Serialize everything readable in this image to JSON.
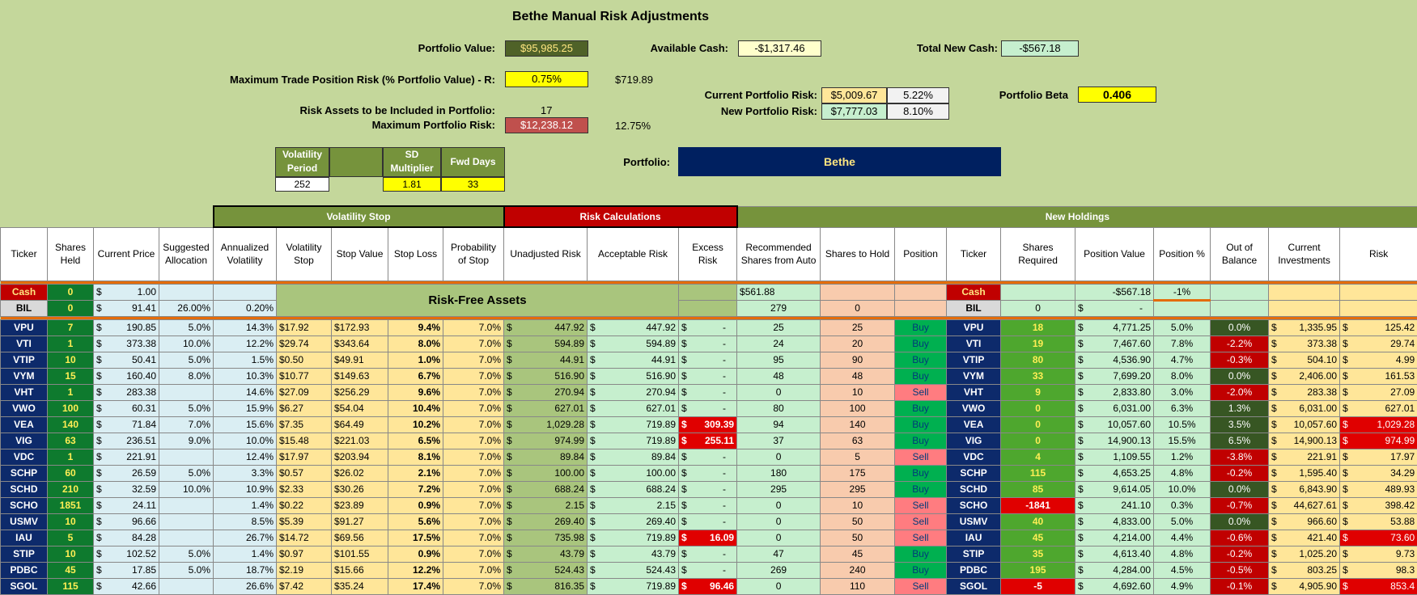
{
  "title": "Bethe Manual Risk Adjustments",
  "top": {
    "portfolio_value_label": "Portfolio Value:",
    "portfolio_value": "$95,985.25",
    "available_cash_label": "Available Cash:",
    "available_cash": "-$1,317.46",
    "total_new_cash_label": "Total New Cash:",
    "total_new_cash": "-$567.18",
    "max_trade_label": "Maximum Trade Position Risk (% Portfolio Value) - R:",
    "max_trade_pct": "0.75%",
    "max_trade_amt": "$719.89",
    "current_risk_label": "Current Portfolio Risk:",
    "current_risk": "$5,009.67",
    "current_risk_pct": "5.22%",
    "new_risk_label": "New Portfolio Risk:",
    "new_risk": "$7,777.03",
    "new_risk_pct": "8.10%",
    "beta_label": "Portfolio Beta",
    "beta": "0.406",
    "risk_assets_label": "Risk Assets to be Included in Portfolio:",
    "risk_assets": "17",
    "max_port_risk_label": "Maximum Portfolio Risk:",
    "max_port_risk": "$12,238.12",
    "max_port_risk_pct": "12.75%",
    "portfolio_label": "Portfolio:",
    "portfolio_name": "Bethe"
  },
  "params": {
    "vol_period_label": "Volatility Period",
    "sd_label": "SD Multiplier",
    "fwd_label": "Fwd Days",
    "vol_period": "252",
    "sd": "1.81",
    "fwd": "33"
  },
  "sections": {
    "vol": "Volatility Stop",
    "risk": "Risk Calculations",
    "new": "New Holdings",
    "riskfree": "Risk-Free Assets"
  },
  "headers": [
    "Ticker",
    "Shares Held",
    "Current Price",
    "Suggested Allocation",
    "Annualized Volatility",
    "Volatility Stop",
    "Stop Value",
    "Stop Loss",
    "Probability of Stop",
    "Unadjusted Risk",
    "Acceptable Risk",
    "Excess Risk",
    "Recommended Shares from Auto",
    "Shares to Hold",
    "Position",
    "Ticker",
    "Shares Required",
    "Position Value",
    "Position %",
    "Out of Balance",
    "Current Investments",
    "Risk"
  ],
  "cash": {
    "t": "Cash",
    "sh": "0",
    "p": "1.00",
    "rec": "$561.88",
    "t2": "Cash",
    "pv": "-$567.18",
    "pp": "-1%"
  },
  "bil": {
    "t": "BIL",
    "sh": "0",
    "p": "91.41",
    "alloc": "26.00%",
    "vol": "0.20%",
    "rec": "279",
    "hold": "0",
    "t2": "BIL",
    "req": "0",
    "pv": "-"
  },
  "rows": [
    [
      "VPU",
      "7",
      "190.85",
      "5.0%",
      "14.3%",
      "$17.92",
      "$172.93",
      "9.4%",
      "7.0%",
      "447.92",
      "447.92",
      "-",
      "25",
      "25",
      "Buy",
      "VPU",
      "18",
      "4,771.25",
      "5.0%",
      "0.0%",
      "1,335.95",
      "125.42"
    ],
    [
      "VTI",
      "1",
      "373.38",
      "10.0%",
      "12.2%",
      "$29.74",
      "$343.64",
      "8.0%",
      "7.0%",
      "594.89",
      "594.89",
      "-",
      "24",
      "20",
      "Buy",
      "VTI",
      "19",
      "7,467.60",
      "7.8%",
      "-2.2%",
      "373.38",
      "29.74"
    ],
    [
      "VTIP",
      "10",
      "50.41",
      "5.0%",
      "1.5%",
      "$0.50",
      "$49.91",
      "1.0%",
      "7.0%",
      "44.91",
      "44.91",
      "-",
      "95",
      "90",
      "Buy",
      "VTIP",
      "80",
      "4,536.90",
      "4.7%",
      "-0.3%",
      "504.10",
      "4.99"
    ],
    [
      "VYM",
      "15",
      "160.40",
      "8.0%",
      "10.3%",
      "$10.77",
      "$149.63",
      "6.7%",
      "7.0%",
      "516.90",
      "516.90",
      "-",
      "48",
      "48",
      "Buy",
      "VYM",
      "33",
      "7,699.20",
      "8.0%",
      "0.0%",
      "2,406.00",
      "161.53"
    ],
    [
      "VHT",
      "1",
      "283.38",
      "",
      "14.6%",
      "$27.09",
      "$256.29",
      "9.6%",
      "7.0%",
      "270.94",
      "270.94",
      "-",
      "0",
      "10",
      "Sell",
      "VHT",
      "9",
      "2,833.80",
      "3.0%",
      "-2.0%",
      "283.38",
      "27.09"
    ],
    [
      "VWO",
      "100",
      "60.31",
      "5.0%",
      "15.9%",
      "$6.27",
      "$54.04",
      "10.4%",
      "7.0%",
      "627.01",
      "627.01",
      "-",
      "80",
      "100",
      "Buy",
      "VWO",
      "0",
      "6,031.00",
      "6.3%",
      "1.3%",
      "6,031.00",
      "627.01"
    ],
    [
      "VEA",
      "140",
      "71.84",
      "7.0%",
      "15.6%",
      "$7.35",
      "$64.49",
      "10.2%",
      "7.0%",
      "1,029.28",
      "719.89",
      "309.39",
      "94",
      "140",
      "Buy",
      "VEA",
      "0",
      "10,057.60",
      "10.5%",
      "3.5%",
      "10,057.60",
      "1,029.28"
    ],
    [
      "VIG",
      "63",
      "236.51",
      "9.0%",
      "10.0%",
      "$15.48",
      "$221.03",
      "6.5%",
      "7.0%",
      "974.99",
      "719.89",
      "255.11",
      "37",
      "63",
      "Buy",
      "VIG",
      "0",
      "14,900.13",
      "15.5%",
      "6.5%",
      "14,900.13",
      "974.99"
    ],
    [
      "VDC",
      "1",
      "221.91",
      "",
      "12.4%",
      "$17.97",
      "$203.94",
      "8.1%",
      "7.0%",
      "89.84",
      "89.84",
      "-",
      "0",
      "5",
      "Sell",
      "VDC",
      "4",
      "1,109.55",
      "1.2%",
      "-3.8%",
      "221.91",
      "17.97"
    ],
    [
      "SCHP",
      "60",
      "26.59",
      "5.0%",
      "3.3%",
      "$0.57",
      "$26.02",
      "2.1%",
      "7.0%",
      "100.00",
      "100.00",
      "-",
      "180",
      "175",
      "Buy",
      "SCHP",
      "115",
      "4,653.25",
      "4.8%",
      "-0.2%",
      "1,595.40",
      "34.29"
    ],
    [
      "SCHD",
      "210",
      "32.59",
      "10.0%",
      "10.9%",
      "$2.33",
      "$30.26",
      "7.2%",
      "7.0%",
      "688.24",
      "688.24",
      "-",
      "295",
      "295",
      "Buy",
      "SCHD",
      "85",
      "9,614.05",
      "10.0%",
      "0.0%",
      "6,843.90",
      "489.93"
    ],
    [
      "SCHO",
      "1851",
      "24.11",
      "",
      "1.4%",
      "$0.22",
      "$23.89",
      "0.9%",
      "7.0%",
      "2.15",
      "2.15",
      "-",
      "0",
      "10",
      "Sell",
      "SCHO",
      "-1841",
      "241.10",
      "0.3%",
      "-0.7%",
      "44,627.61",
      "398.42"
    ],
    [
      "USMV",
      "10",
      "96.66",
      "",
      "8.5%",
      "$5.39",
      "$91.27",
      "5.6%",
      "7.0%",
      "269.40",
      "269.40",
      "-",
      "0",
      "50",
      "Sell",
      "USMV",
      "40",
      "4,833.00",
      "5.0%",
      "0.0%",
      "966.60",
      "53.88"
    ],
    [
      "IAU",
      "5",
      "84.28",
      "",
      "26.7%",
      "$14.72",
      "$69.56",
      "17.5%",
      "7.0%",
      "735.98",
      "719.89",
      "16.09",
      "0",
      "50",
      "Sell",
      "IAU",
      "45",
      "4,214.00",
      "4.4%",
      "-0.6%",
      "421.40",
      "73.60"
    ],
    [
      "STIP",
      "10",
      "102.52",
      "5.0%",
      "1.4%",
      "$0.97",
      "$101.55",
      "0.9%",
      "7.0%",
      "43.79",
      "43.79",
      "-",
      "47",
      "45",
      "Buy",
      "STIP",
      "35",
      "4,613.40",
      "4.8%",
      "-0.2%",
      "1,025.20",
      "9.73"
    ],
    [
      "PDBC",
      "45",
      "17.85",
      "5.0%",
      "18.7%",
      "$2.19",
      "$15.66",
      "12.2%",
      "7.0%",
      "524.43",
      "524.43",
      "-",
      "269",
      "240",
      "Buy",
      "PDBC",
      "195",
      "4,284.00",
      "4.5%",
      "-0.5%",
      "803.25",
      "98.3"
    ],
    [
      "SGOL",
      "115",
      "42.66",
      "",
      "26.6%",
      "$7.42",
      "$35.24",
      "17.4%",
      "7.0%",
      "816.35",
      "719.89",
      "96.46",
      "0",
      "110",
      "Sell",
      "SGOL",
      "-5",
      "4,692.60",
      "4.9%",
      "-0.1%",
      "4,905.90",
      "853.4"
    ]
  ]
}
